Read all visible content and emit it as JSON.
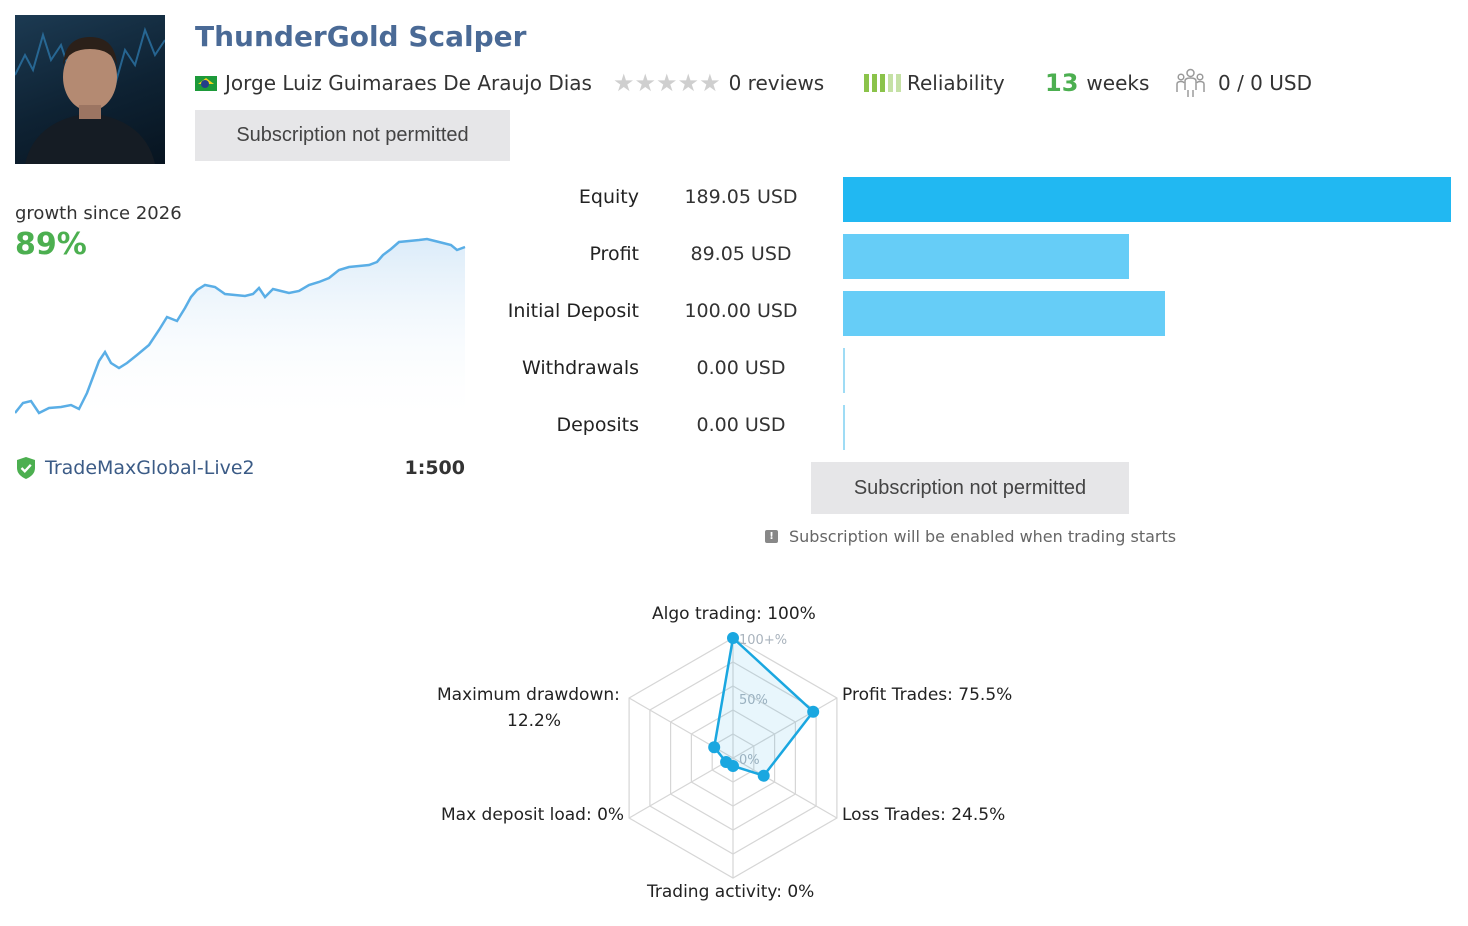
{
  "signal": {
    "title": "ThunderGold Scalper",
    "author": "Jorge Luiz Guimaraes De Araujo Dias",
    "reviews": "0 reviews",
    "reliability_label": "Reliability",
    "weeks_value": "13",
    "weeks_label": "weeks",
    "subscribers": "0 / 0 USD",
    "subscribe_button": "Subscription not permitted"
  },
  "growth": {
    "label": "growth since 2026",
    "value": "89%",
    "broker": "TradeMaxGlobal-Live2",
    "leverage": "1:500",
    "line_color": "#5aaee6"
  },
  "stats": [
    {
      "label": "Equity",
      "value": "189.05 USD",
      "amount": 189.05,
      "color": "#21b8f2"
    },
    {
      "label": "Profit",
      "value": "89.05 USD",
      "amount": 89.05,
      "color": "#66cdf7"
    },
    {
      "label": "Initial Deposit",
      "value": "100.00 USD",
      "amount": 100.0,
      "color": "#66cdf7"
    },
    {
      "label": "Withdrawals",
      "value": "0.00 USD",
      "amount": 0,
      "color": "#9fdcf5"
    },
    {
      "label": "Deposits",
      "value": "0.00 USD",
      "amount": 0,
      "color": "#9fdcf5"
    }
  ],
  "subscription": {
    "button": "Subscription not permitted",
    "note": "Subscription will be enabled when trading starts"
  },
  "chart_data": {
    "type": "radar",
    "axes": [
      {
        "label": "Algo trading: 100%",
        "value": 100
      },
      {
        "label": "Profit Trades: 75.5%",
        "value": 75.5
      },
      {
        "label": "Loss Trades: 24.5%",
        "value": 24.5
      },
      {
        "label": "Trading activity: 0%",
        "value": 0
      },
      {
        "label": "Max deposit load: 0%",
        "value": 0
      },
      {
        "label_line1": "Maximum drawdown:",
        "label_line2": "12.2%",
        "value": 12.2
      }
    ],
    "scale_labels": [
      "100+%",
      "50%",
      "0%"
    ],
    "range": [
      0,
      100
    ],
    "color": "#1aa7e0"
  }
}
